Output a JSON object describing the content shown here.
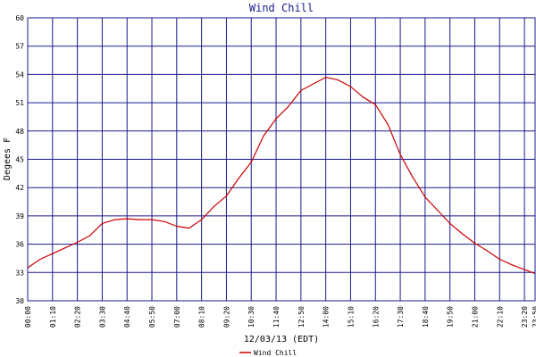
{
  "chart_data": {
    "type": "line",
    "title": "Wind Chill",
    "ylabel": "Degees F",
    "xlabel": "12/03/13 (EDT)",
    "ylim": [
      30,
      60
    ],
    "yticks": [
      30,
      33,
      36,
      39,
      42,
      45,
      48,
      51,
      54,
      57,
      60
    ],
    "xticks": [
      "00:00",
      "01:10",
      "02:20",
      "03:30",
      "04:40",
      "05:50",
      "07:00",
      "08:10",
      "09:20",
      "10:30",
      "11:40",
      "12:50",
      "14:00",
      "15:10",
      "16:20",
      "17:30",
      "18:40",
      "19:50",
      "21:00",
      "22:10",
      "23:20",
      "23:50"
    ],
    "grid": true,
    "legend": "bottom-center",
    "colors": {
      "series": "#cc0000",
      "grid": "#1a1a8c",
      "title": "#1a1a8c"
    },
    "series": [
      {
        "name": "Wind Chill",
        "x": [
          "00:00",
          "00:35",
          "01:10",
          "01:45",
          "02:20",
          "02:55",
          "03:30",
          "04:05",
          "04:40",
          "05:15",
          "05:50",
          "06:25",
          "07:00",
          "07:35",
          "08:10",
          "08:45",
          "09:20",
          "09:55",
          "10:30",
          "11:05",
          "11:40",
          "12:15",
          "12:50",
          "13:25",
          "14:00",
          "14:35",
          "15:10",
          "15:45",
          "16:20",
          "16:55",
          "17:30",
          "18:05",
          "18:40",
          "19:15",
          "19:50",
          "20:25",
          "21:00",
          "21:35",
          "22:10",
          "22:45",
          "23:20",
          "23:50"
        ],
        "values": [
          33.5,
          34.4,
          35.0,
          35.6,
          36.2,
          36.9,
          38.2,
          38.6,
          38.7,
          38.6,
          38.6,
          38.4,
          37.9,
          37.7,
          38.6,
          40.0,
          41.1,
          43.0,
          44.7,
          47.5,
          49.3,
          50.6,
          52.3,
          53.0,
          53.7,
          53.4,
          52.7,
          51.6,
          50.8,
          48.7,
          45.5,
          43.1,
          41.0,
          39.6,
          38.2,
          37.1,
          36.1,
          35.3,
          34.4,
          33.8,
          33.3,
          32.9
        ]
      }
    ]
  }
}
